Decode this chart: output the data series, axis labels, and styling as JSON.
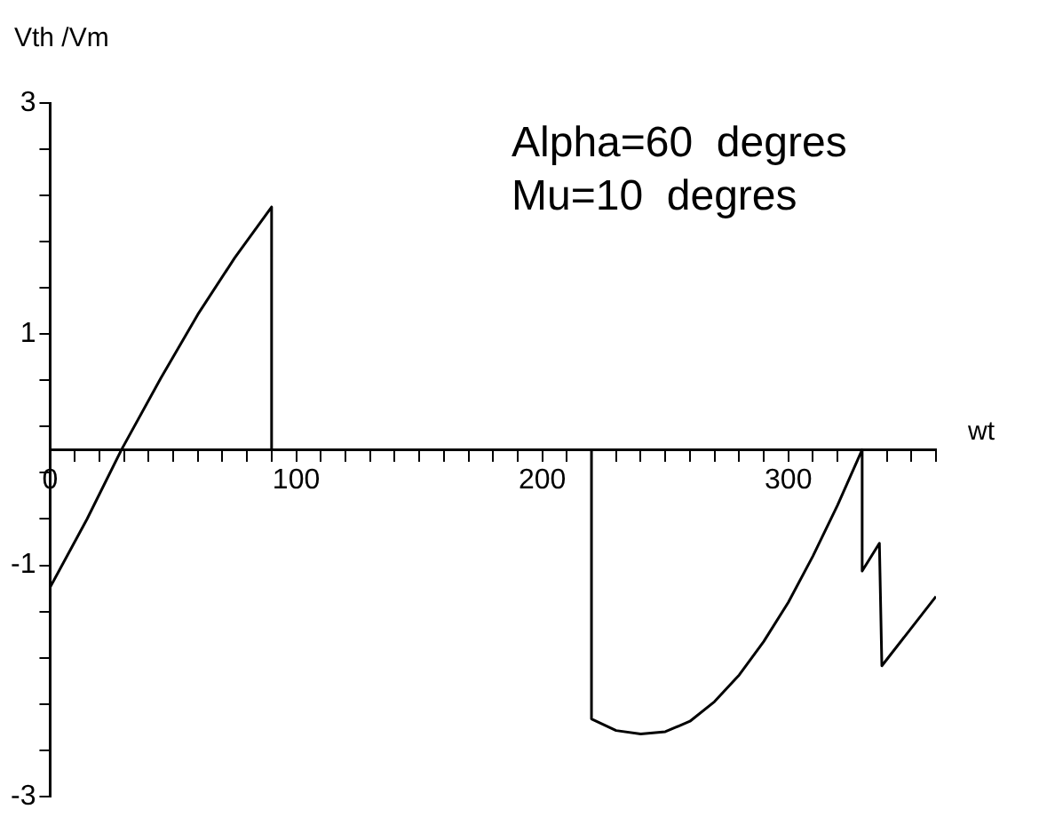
{
  "chart_data": {
    "type": "line",
    "xlabel": "wt",
    "ylabel": "Vth /Vm",
    "annotations": [
      "Alpha=60  degres",
      "Mu=10  degres"
    ],
    "series": [
      {
        "color": "#000000",
        "x": [
          0,
          15,
          29,
          45,
          60,
          75,
          90,
          90,
          220,
          220,
          230,
          240,
          250,
          260,
          270,
          280,
          290,
          300,
          310,
          320,
          330,
          330,
          337,
          338,
          360
        ],
        "values": [
          -1.19,
          -0.6,
          0,
          0.62,
          1.17,
          1.66,
          2.1,
          0,
          0,
          -2.33,
          -2.43,
          -2.46,
          -2.44,
          -2.35,
          -2.18,
          -1.95,
          -1.66,
          -1.32,
          -0.92,
          -0.48,
          0,
          -1.05,
          -0.81,
          -1.87,
          -1.27
        ]
      }
    ],
    "xlim": [
      0,
      360
    ],
    "xticks": [
      0,
      {
        "value": 10,
        "label": null
      },
      {
        "value": 20,
        "label": null
      },
      {
        "value": 30,
        "label": null
      },
      {
        "value": 40,
        "label": null
      },
      {
        "value": 50,
        "label": null
      },
      {
        "value": 60,
        "label": null
      },
      {
        "value": 70,
        "label": null
      },
      {
        "value": 80,
        "label": null
      },
      {
        "value": 90,
        "label": null
      },
      100,
      {
        "value": 110,
        "label": null
      },
      {
        "value": 120,
        "label": null
      },
      {
        "value": 130,
        "label": null
      },
      {
        "value": 140,
        "label": null
      },
      {
        "value": 150,
        "label": null
      },
      {
        "value": 160,
        "label": null
      },
      {
        "value": 170,
        "label": null
      },
      {
        "value": 180,
        "label": null
      },
      {
        "value": 190,
        "label": null
      },
      200,
      {
        "value": 210,
        "label": null
      },
      {
        "value": 220,
        "label": null
      },
      {
        "value": 230,
        "label": null
      },
      {
        "value": 240,
        "label": null
      },
      {
        "value": 250,
        "label": null
      },
      {
        "value": 260,
        "label": null
      },
      {
        "value": 270,
        "label": null
      },
      {
        "value": 280,
        "label": null
      },
      {
        "value": 290,
        "label": null
      },
      300,
      {
        "value": 310,
        "label": null
      },
      {
        "value": 320,
        "label": null
      },
      {
        "value": 330,
        "label": null
      },
      {
        "value": 340,
        "label": null
      },
      {
        "value": 350,
        "label": null
      },
      {
        "value": 360,
        "label": null
      }
    ],
    "ylim": [
      -3,
      3
    ],
    "yticks": [
      -3,
      {
        "value": -2.6,
        "label": null
      },
      {
        "value": -2.2,
        "label": null
      },
      {
        "value": -1.8,
        "label": null
      },
      {
        "value": -1.4,
        "label": null
      },
      -1,
      {
        "value": -0.6,
        "label": null
      },
      {
        "value": -0.2,
        "label": null
      },
      {
        "value": 0.2,
        "label": null
      },
      {
        "value": 0.6,
        "label": null
      },
      1,
      {
        "value": 1.4,
        "label": null
      },
      {
        "value": 1.8,
        "label": null
      },
      {
        "value": 2.2,
        "label": null
      },
      {
        "value": 2.6,
        "label": null
      },
      3
    ],
    "grid": false,
    "legend": false,
    "marker": "none",
    "line_style": "solid"
  }
}
